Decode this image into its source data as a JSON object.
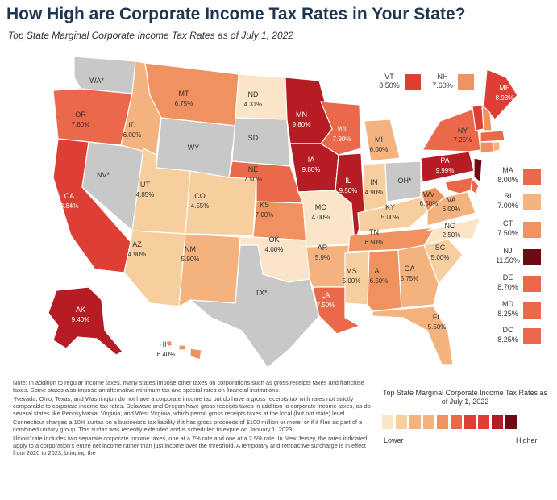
{
  "title": "How High are Corporate Income Tax Rates in Your State?",
  "subtitle": "Top State Marginal Corporate Income Tax Rates as of July 1, 2022",
  "palette": {
    "none": "#c8c8c8",
    "c1": "#fbe5c8",
    "c2": "#f7cf9f",
    "c3": "#f4b27e",
    "c4": "#ef925f",
    "c5": "#e9694a",
    "c6": "#de3f34",
    "c7": "#b51c24",
    "c8": "#6e0b12"
  },
  "states": {
    "WA": {
      "label": "WA*",
      "rate": ""
    },
    "OR": {
      "label": "OR",
      "rate": "7.60%"
    },
    "CA": {
      "label": "CA",
      "rate": "8.84%"
    },
    "NV": {
      "label": "NV*",
      "rate": ""
    },
    "ID": {
      "label": "ID",
      "rate": "6.00%"
    },
    "MT": {
      "label": "MT",
      "rate": "6.75%"
    },
    "WY": {
      "label": "WY",
      "rate": ""
    },
    "UT": {
      "label": "UT",
      "rate": "4.85%"
    },
    "CO": {
      "label": "CO",
      "rate": "4.55%"
    },
    "AZ": {
      "label": "AZ",
      "rate": "4.90%"
    },
    "NM": {
      "label": "NM",
      "rate": "5.90%"
    },
    "ND": {
      "label": "ND",
      "rate": "4.31%"
    },
    "SD": {
      "label": "SD",
      "rate": ""
    },
    "NE": {
      "label": "NE",
      "rate": "7.50%"
    },
    "KS": {
      "label": "KS",
      "rate": "7.00%"
    },
    "OK": {
      "label": "OK",
      "rate": "4.00%"
    },
    "TX": {
      "label": "TX*",
      "rate": ""
    },
    "MN": {
      "label": "MN",
      "rate": "9.80%"
    },
    "IA": {
      "label": "IA",
      "rate": "9.80%"
    },
    "MO": {
      "label": "MO",
      "rate": "4.00%"
    },
    "AR": {
      "label": "AR",
      "rate": "5.9%"
    },
    "LA": {
      "label": "LA",
      "rate": "7.50%"
    },
    "WI": {
      "label": "WI",
      "rate": "7.90%"
    },
    "IL": {
      "label": "IL",
      "rate": "9.50%"
    },
    "MI": {
      "label": "MI",
      "rate": "6.00%"
    },
    "IN": {
      "label": "IN",
      "rate": "4.90%"
    },
    "OH": {
      "label": "OH*",
      "rate": ""
    },
    "KY": {
      "label": "KY",
      "rate": "5.00%"
    },
    "TN": {
      "label": "TN",
      "rate": "6.50%"
    },
    "MS": {
      "label": "MS",
      "rate": "5.00%"
    },
    "AL": {
      "label": "AL",
      "rate": "6.50%"
    },
    "GA": {
      "label": "GA",
      "rate": "5.75%"
    },
    "FL": {
      "label": "FL",
      "rate": "5.50%"
    },
    "SC": {
      "label": "SC",
      "rate": "5.00%"
    },
    "NC": {
      "label": "NC",
      "rate": "2.50%"
    },
    "VA": {
      "label": "VA",
      "rate": "6.00%"
    },
    "WV": {
      "label": "WV",
      "rate": "6.50%"
    },
    "PA": {
      "label": "PA",
      "rate": "9.99%"
    },
    "NY": {
      "label": "NY",
      "rate": "7.25%"
    },
    "ME": {
      "label": "ME",
      "rate": "8.93%"
    },
    "AK": {
      "label": "AK",
      "rate": "9.40%"
    },
    "HI": {
      "label": "HI",
      "rate": "6.40%"
    }
  },
  "ne_boxes": [
    {
      "label": "VT",
      "rate": "8.50%",
      "color": "#de3f34"
    },
    {
      "label": "NH",
      "rate": "7.60%",
      "color": "#ef925f"
    }
  ],
  "side_boxes": [
    {
      "label": "MA",
      "rate": "8.00%",
      "color": "#e9694a"
    },
    {
      "label": "RI",
      "rate": "7.00%",
      "color": "#f4b27e"
    },
    {
      "label": "CT",
      "rate": "7.50%",
      "color": "#ef925f"
    },
    {
      "label": "NJ",
      "rate": "11.50%",
      "color": "#6e0b12"
    },
    {
      "label": "DE",
      "rate": "8.70%",
      "color": "#e9694a"
    },
    {
      "label": "MD",
      "rate": "8.25%",
      "color": "#e9694a"
    },
    {
      "label": "DC",
      "rate": "8.25%",
      "color": "#e9694a"
    }
  ],
  "notes": [
    "Note: In addition to regular income taxes, many states impose other taxes on corporations such as gross receipts taxes and franchise taxes. Some states also impose an alternative minimum tax and special rates on financial institutions.",
    "*Nevada, Ohio, Texas, and Washington do not have a corporate income tax but do have a gross receipts tax with rates not strictly comparable to corporate income tax rates. Delaware and Oregon have gross receipts taxes in addition to corporate income taxes, as do several states like Pennsylvania, Virginia, and West Virginia, which permit gross receipts taxes at the local (but not state) level.",
    "Connecticut charges a 10% surtax on a business's tax liability if it has gross proceeds of $100 million or more, or if it files as part of a combined unitary group. This surtax was recently extended and is scheduled to expire on January 1, 2023.",
    "Illinois' rate includes two separate corporate income taxes, one at a 7% rate and one at a 2.5% rate. In New Jersey, the rates indicated apply to a corporation's entire net income rather than just income over the threshold. A temporary and retroactive surcharge is in effect from 2020 to 2023, bringing the"
  ],
  "legend": {
    "title": "Top State Marginal Corporate Income Tax Rates as of July 1, 2022",
    "lower": "Lower",
    "higher": "Higher",
    "scale": [
      "#fbe5c8",
      "#f7cf9f",
      "#f4b27e",
      "#ef925f",
      "#e9694a",
      "#de3f34",
      "#b51c24",
      "#6e0b12"
    ]
  }
}
